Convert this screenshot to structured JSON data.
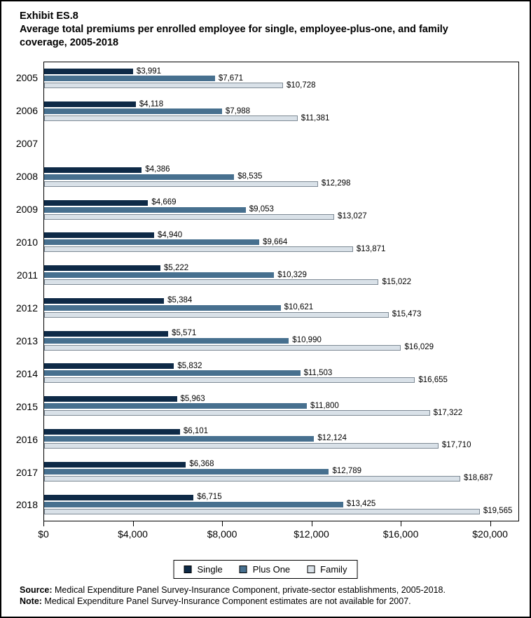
{
  "title": {
    "exhibit": "Exhibit ES.8",
    "line1": "Average total premiums per enrolled employee for single, employee-plus-one, and family",
    "line2": "coverage, 2005-2018"
  },
  "chart_data": {
    "type": "bar",
    "orientation": "horizontal",
    "title": "Average total premiums per enrolled employee for single, employee-plus-one, and family coverage, 2005-2018",
    "categories": [
      "2005",
      "2006",
      "2007",
      "2008",
      "2009",
      "2010",
      "2011",
      "2012",
      "2013",
      "2014",
      "2015",
      "2016",
      "2017",
      "2018"
    ],
    "series": [
      {
        "name": "Single",
        "key": "single",
        "color": "#0e2a47",
        "values": [
          3991,
          4118,
          null,
          4386,
          4669,
          4940,
          5222,
          5384,
          5571,
          5832,
          5963,
          6101,
          6368,
          6715
        ],
        "labels": [
          "$3,991",
          "$4,118",
          null,
          "$4,386",
          "$4,669",
          "$4,940",
          "$5,222",
          "$5,384",
          "$5,571",
          "$5,832",
          "$5,963",
          "$6,101",
          "$6,368",
          "$6,715"
        ]
      },
      {
        "name": "Plus One",
        "key": "plus-one",
        "color": "#47708f",
        "values": [
          7671,
          7988,
          null,
          8535,
          9053,
          9664,
          10329,
          10621,
          10990,
          11503,
          11800,
          12124,
          12789,
          13425
        ],
        "labels": [
          "$7,671",
          "$7,988",
          null,
          "$8,535",
          "$9,053",
          "$9,664",
          "$10,329",
          "$10,621",
          "$10,990",
          "$11,503",
          "$11,800",
          "$12,124",
          "$12,789",
          "$13,425"
        ]
      },
      {
        "name": "Family",
        "key": "family",
        "color": "#d9e1e8",
        "border_color": "#7e8a95",
        "values": [
          10728,
          11381,
          null,
          12298,
          13027,
          13871,
          15022,
          15473,
          16029,
          16655,
          17322,
          17710,
          18687,
          19565
        ],
        "labels": [
          "$10,728",
          "$11,381",
          null,
          "$12,298",
          "$13,027",
          "$13,871",
          "$15,022",
          "$15,473",
          "$16,029",
          "$16,655",
          "$17,322",
          "$17,710",
          "$18,687",
          "$19,565"
        ]
      }
    ],
    "xlim": [
      0,
      21300
    ],
    "x_ticks": [
      {
        "value": 0,
        "label": "$0"
      },
      {
        "value": 4000,
        "label": "$4,000"
      },
      {
        "value": 8000,
        "label": "$8,000"
      },
      {
        "value": 12000,
        "label": "$12,000"
      },
      {
        "value": 16000,
        "label": "$16,000"
      },
      {
        "value": 20000,
        "label": "$20,000"
      }
    ],
    "grid": false,
    "legend_position": "bottom",
    "note": "No bars shown for 2007 (estimates not available)"
  },
  "footer": {
    "source_label": "Source:",
    "source_text": " Medical Expenditure Panel Survey-Insurance Component, private-sector establishments, 2005-2018.",
    "note_label": "Note:",
    "note_text": " Medical Expenditure Panel Survey-Insurance Component estimates are not available for 2007."
  }
}
